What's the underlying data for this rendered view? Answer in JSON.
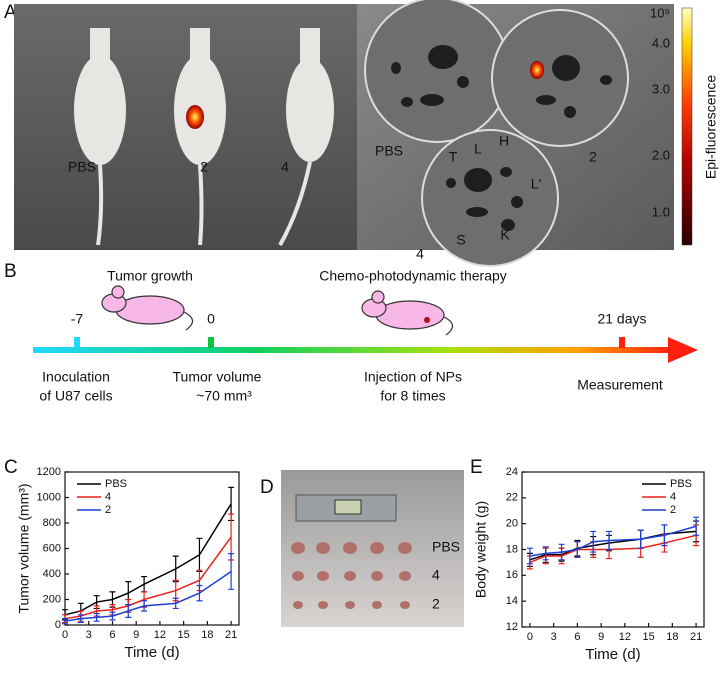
{
  "panel_a": {
    "label": "A",
    "left_labels": [
      "PBS",
      "2",
      "4"
    ],
    "right_labels": [
      "PBS",
      "2",
      "4"
    ],
    "organs": [
      "T",
      "L",
      "H",
      "L'",
      "S",
      "K"
    ],
    "colorbar": {
      "label": "Epi-fluorescence",
      "exponent": "10⁹",
      "ticks": [
        "4.0",
        "3.0",
        "2.0",
        "1.0"
      ]
    }
  },
  "panel_b": {
    "label": "B",
    "phase1": "Tumor growth",
    "phase2": "Chemo-photodynamic therapy",
    "days": [
      "-7",
      "0",
      "21 days"
    ],
    "events": [
      [
        "Inoculation",
        "of U87 cells"
      ],
      [
        "Tumor volume",
        "~70 mm³"
      ],
      [
        "Injection of NPs",
        "for 8 times"
      ],
      [
        "Measurement"
      ]
    ]
  },
  "panel_d": {
    "label": "D",
    "rows": [
      "PBS",
      "4",
      "2"
    ]
  },
  "chart_data": [
    {
      "type": "line",
      "label": "C",
      "x_label": "Time (d)",
      "y_label": "Tumor volume (mm³)",
      "x": [
        0,
        2,
        4,
        6,
        8,
        10,
        14,
        17,
        21
      ],
      "xlim": [
        0,
        22
      ],
      "xticks": [
        0,
        3,
        6,
        9,
        12,
        15,
        18,
        21
      ],
      "ylim": [
        0,
        1200
      ],
      "yticks": [
        0,
        200,
        400,
        600,
        800,
        1000,
        1200
      ],
      "legend": "top-left",
      "series": [
        {
          "name": "PBS",
          "color": "#000000",
          "values": [
            80,
            110,
            180,
            200,
            250,
            320,
            440,
            550,
            950
          ],
          "errors": [
            40,
            60,
            50,
            60,
            90,
            60,
            100,
            130,
            130
          ]
        },
        {
          "name": "4",
          "color": "#e8221c",
          "values": [
            50,
            70,
            110,
            120,
            150,
            200,
            270,
            350,
            690
          ],
          "errors": [
            30,
            40,
            40,
            40,
            50,
            60,
            80,
            80,
            180
          ]
        },
        {
          "name": "2",
          "color": "#1f3fd8",
          "values": [
            30,
            50,
            60,
            70,
            110,
            150,
            170,
            250,
            420
          ],
          "errors": [
            20,
            30,
            30,
            30,
            50,
            40,
            40,
            60,
            140
          ]
        }
      ]
    },
    {
      "type": "line",
      "label": "E",
      "x_label": "Time (d)",
      "y_label": "Body weight (g)",
      "x": [
        0,
        2,
        4,
        6,
        8,
        10,
        14,
        17,
        21
      ],
      "xlim": [
        -1,
        22
      ],
      "xticks": [
        0,
        3,
        6,
        9,
        12,
        15,
        18,
        21
      ],
      "ylim": [
        12,
        24
      ],
      "yticks": [
        12,
        14,
        16,
        18,
        20,
        22,
        24
      ],
      "legend": "top-right",
      "series": [
        {
          "name": "PBS",
          "color": "#000000",
          "values": [
            17.2,
            17.6,
            17.6,
            18.1,
            18.3,
            18.5,
            18.8,
            19.2,
            19.4
          ],
          "errors": [
            0.5,
            0.6,
            0.5,
            0.6,
            0.7,
            0.6,
            0.7,
            0.7,
            0.8
          ]
        },
        {
          "name": "4",
          "color": "#e8221c",
          "values": [
            17.0,
            17.5,
            17.5,
            18.0,
            18.0,
            18.0,
            18.1,
            18.5,
            19.1
          ],
          "errors": [
            0.5,
            0.6,
            0.6,
            0.6,
            0.6,
            0.7,
            0.7,
            0.7,
            0.8
          ]
        },
        {
          "name": "2",
          "color": "#1f3fd8",
          "values": [
            17.5,
            17.7,
            17.8,
            18.0,
            18.6,
            18.7,
            18.8,
            19.1,
            19.8
          ],
          "errors": [
            0.6,
            0.5,
            0.6,
            0.6,
            0.8,
            0.7,
            0.7,
            0.8,
            0.7
          ]
        }
      ]
    }
  ]
}
